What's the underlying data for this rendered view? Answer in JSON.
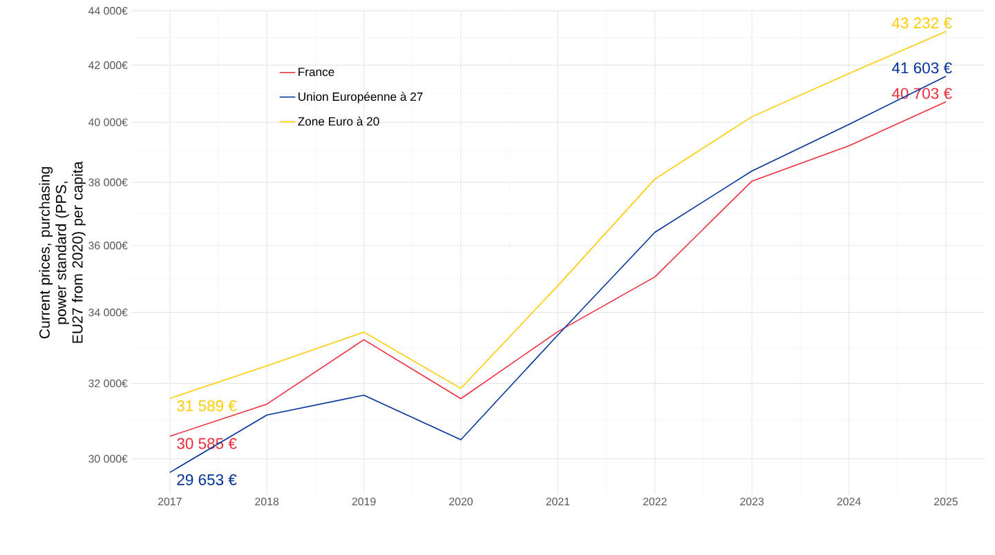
{
  "chart_data": {
    "type": "line",
    "ylabel": "Current prices, purchasing power standard (PPS, EU27 from 2020) per capita",
    "x": [
      2017,
      2018,
      2019,
      2020,
      2021,
      2022,
      2023,
      2024,
      2025
    ],
    "series": [
      {
        "name": "France",
        "color": "#ef2b3c",
        "values": [
          30585,
          31437,
          33214,
          31584,
          33447,
          35049,
          38040,
          39212,
          40703
        ],
        "value_labels": [
          "30 585 €",
          null,
          null,
          null,
          null,
          null,
          null,
          null,
          "40 703 €"
        ]
      },
      {
        "name": "Union Européenne à 27",
        "color": "#003399",
        "values": [
          29653,
          31143,
          31677,
          30495,
          33351,
          36411,
          38373,
          39930,
          41603
        ],
        "value_labels": [
          "29 653 €",
          null,
          null,
          null,
          null,
          null,
          null,
          null,
          "41 603 €"
        ]
      },
      {
        "name": "Zone Euro à 20",
        "color": "#ffcc00",
        "values": [
          31589,
          32484,
          33430,
          31864,
          34785,
          38107,
          40188,
          41701,
          43232
        ],
        "value_labels": [
          "31 589 €",
          null,
          null,
          null,
          null,
          null,
          null,
          null,
          "43 232 €"
        ]
      }
    ],
    "log": "y",
    "xlim": [
      2016.6,
      2025.4
    ],
    "ylim": [
      29100,
      44000
    ],
    "xticks": [
      2017,
      2018,
      2019,
      2020,
      2021,
      2022,
      2023,
      2024,
      2025
    ],
    "yticks": [
      {
        "value": 30000,
        "label": "30 000€"
      },
      {
        "value": 32000,
        "label": "32 000€"
      },
      {
        "value": 34000,
        "label": "34 000€"
      },
      {
        "value": 36000,
        "label": "36 000€"
      },
      {
        "value": 38000,
        "label": "38 000€"
      },
      {
        "value": 40000,
        "label": "40 000€"
      },
      {
        "value": 42000,
        "label": "42 000€"
      },
      {
        "value": 44000,
        "label": "44 000€"
      }
    ],
    "grid": true,
    "legend": "top left",
    "marker": "none",
    "line_style": "solid"
  }
}
